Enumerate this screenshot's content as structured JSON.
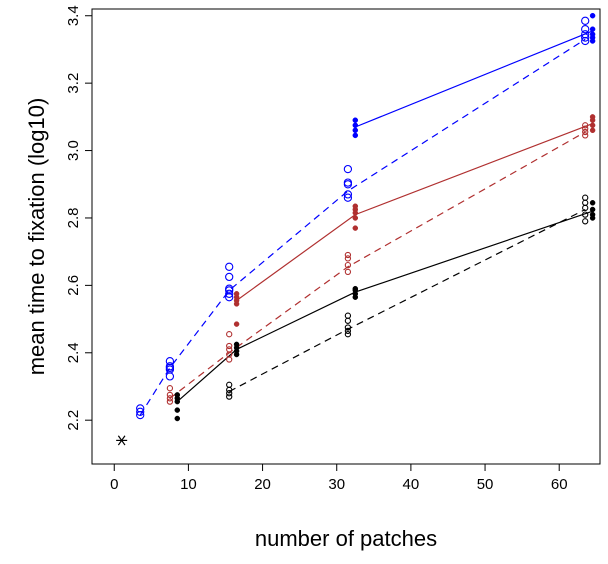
{
  "chart_data": {
    "type": "scatter",
    "title": "",
    "xlabel": "number of patches",
    "ylabel": "mean time to fixation (log10)",
    "xlim": [
      -3,
      65.5
    ],
    "ylim": [
      2.07,
      3.42
    ],
    "xticks": [
      0,
      10,
      20,
      30,
      40,
      50,
      60
    ],
    "xtick_labels": [
      "0",
      "10",
      "20",
      "30",
      "40",
      "50",
      "60"
    ],
    "yticks": [
      2.2,
      2.4,
      2.6,
      2.8,
      3.0,
      3.2,
      3.4
    ],
    "ytick_labels": [
      "2.2",
      "2.4",
      "2.6",
      "2.8",
      "3.0",
      "3.2",
      "3.4"
    ],
    "grid": false,
    "legend": "none",
    "single_point": {
      "x": 1,
      "y": 2.14,
      "marker": "asterisk",
      "color": "#000000"
    },
    "series": [
      {
        "color": "#0000ff",
        "marker": "open",
        "line": "dashed",
        "points": [
          [
            3.5,
            2.215
          ],
          [
            3.5,
            2.225
          ],
          [
            3.5,
            2.235
          ],
          [
            7.5,
            2.33
          ],
          [
            7.5,
            2.35
          ],
          [
            7.5,
            2.355
          ],
          [
            7.5,
            2.36
          ],
          [
            7.5,
            2.375
          ],
          [
            15.5,
            2.565
          ],
          [
            15.5,
            2.575
          ],
          [
            15.5,
            2.585
          ],
          [
            15.5,
            2.59
          ],
          [
            15.5,
            2.625
          ],
          [
            15.5,
            2.655
          ],
          [
            31.5,
            2.86
          ],
          [
            31.5,
            2.87
          ],
          [
            31.5,
            2.9
          ],
          [
            31.5,
            2.905
          ],
          [
            31.5,
            2.945
          ],
          [
            63.5,
            3.325
          ],
          [
            63.5,
            3.335
          ],
          [
            63.5,
            3.345
          ],
          [
            63.5,
            3.36
          ],
          [
            63.5,
            3.385
          ]
        ],
        "line_points": [
          [
            3.5,
            2.215
          ],
          [
            7.5,
            2.355
          ],
          [
            15.5,
            2.585
          ],
          [
            31.5,
            2.88
          ],
          [
            63.5,
            3.33
          ]
        ]
      },
      {
        "color": "#0000ff",
        "marker": "filled",
        "line": "solid",
        "points": [
          [
            32.5,
            3.045
          ],
          [
            32.5,
            3.06
          ],
          [
            32.5,
            3.075
          ],
          [
            32.5,
            3.09
          ],
          [
            64.5,
            3.325
          ],
          [
            64.5,
            3.335
          ],
          [
            64.5,
            3.345
          ],
          [
            64.5,
            3.36
          ],
          [
            64.5,
            3.4
          ]
        ],
        "line_points": [
          [
            32.5,
            3.07
          ],
          [
            64.5,
            3.355
          ]
        ]
      },
      {
        "color": "#b03030",
        "marker": "open",
        "line": "dashed",
        "points": [
          [
            7.5,
            2.255
          ],
          [
            7.5,
            2.265
          ],
          [
            7.5,
            2.275
          ],
          [
            7.5,
            2.295
          ],
          [
            15.5,
            2.38
          ],
          [
            15.5,
            2.395
          ],
          [
            15.5,
            2.41
          ],
          [
            15.5,
            2.42
          ],
          [
            15.5,
            2.455
          ],
          [
            31.5,
            2.64
          ],
          [
            31.5,
            2.66
          ],
          [
            31.5,
            2.68
          ],
          [
            31.5,
            2.69
          ],
          [
            63.5,
            3.045
          ],
          [
            63.5,
            3.055
          ],
          [
            63.5,
            3.065
          ],
          [
            63.5,
            3.075
          ]
        ],
        "line_points": [
          [
            7.5,
            2.265
          ],
          [
            15.5,
            2.4
          ],
          [
            31.5,
            2.655
          ],
          [
            63.5,
            3.055
          ]
        ]
      },
      {
        "color": "#b03030",
        "marker": "filled",
        "line": "solid",
        "points": [
          [
            16.5,
            2.485
          ],
          [
            16.5,
            2.545
          ],
          [
            16.5,
            2.555
          ],
          [
            16.5,
            2.565
          ],
          [
            16.5,
            2.575
          ],
          [
            32.5,
            2.77
          ],
          [
            32.5,
            2.8
          ],
          [
            32.5,
            2.815
          ],
          [
            32.5,
            2.825
          ],
          [
            32.5,
            2.835
          ],
          [
            64.5,
            3.06
          ],
          [
            64.5,
            3.075
          ],
          [
            64.5,
            3.09
          ],
          [
            64.5,
            3.1
          ]
        ],
        "line_points": [
          [
            16.5,
            2.555
          ],
          [
            32.5,
            2.81
          ],
          [
            64.5,
            3.08
          ]
        ]
      },
      {
        "color": "#000000",
        "marker": "open",
        "line": "dashed",
        "points": [
          [
            15.5,
            2.27
          ],
          [
            15.5,
            2.28
          ],
          [
            15.5,
            2.29
          ],
          [
            15.5,
            2.305
          ],
          [
            31.5,
            2.455
          ],
          [
            31.5,
            2.465
          ],
          [
            31.5,
            2.475
          ],
          [
            31.5,
            2.495
          ],
          [
            31.5,
            2.51
          ],
          [
            63.5,
            2.79
          ],
          [
            63.5,
            2.81
          ],
          [
            63.5,
            2.83
          ],
          [
            63.5,
            2.845
          ],
          [
            63.5,
            2.86
          ]
        ],
        "line_points": [
          [
            15.5,
            2.285
          ],
          [
            31.5,
            2.47
          ],
          [
            63.5,
            2.825
          ]
        ]
      },
      {
        "color": "#000000",
        "marker": "filled",
        "line": "solid",
        "points": [
          [
            8.5,
            2.205
          ],
          [
            8.5,
            2.23
          ],
          [
            8.5,
            2.255
          ],
          [
            8.5,
            2.265
          ],
          [
            8.5,
            2.275
          ],
          [
            16.5,
            2.395
          ],
          [
            16.5,
            2.405
          ],
          [
            16.5,
            2.415
          ],
          [
            16.5,
            2.425
          ],
          [
            32.5,
            2.565
          ],
          [
            32.5,
            2.575
          ],
          [
            32.5,
            2.585
          ],
          [
            32.5,
            2.59
          ],
          [
            64.5,
            2.8
          ],
          [
            64.5,
            2.81
          ],
          [
            64.5,
            2.825
          ],
          [
            64.5,
            2.845
          ]
        ],
        "line_points": [
          [
            8.5,
            2.255
          ],
          [
            16.5,
            2.41
          ],
          [
            32.5,
            2.58
          ],
          [
            64.5,
            2.82
          ]
        ]
      }
    ]
  }
}
